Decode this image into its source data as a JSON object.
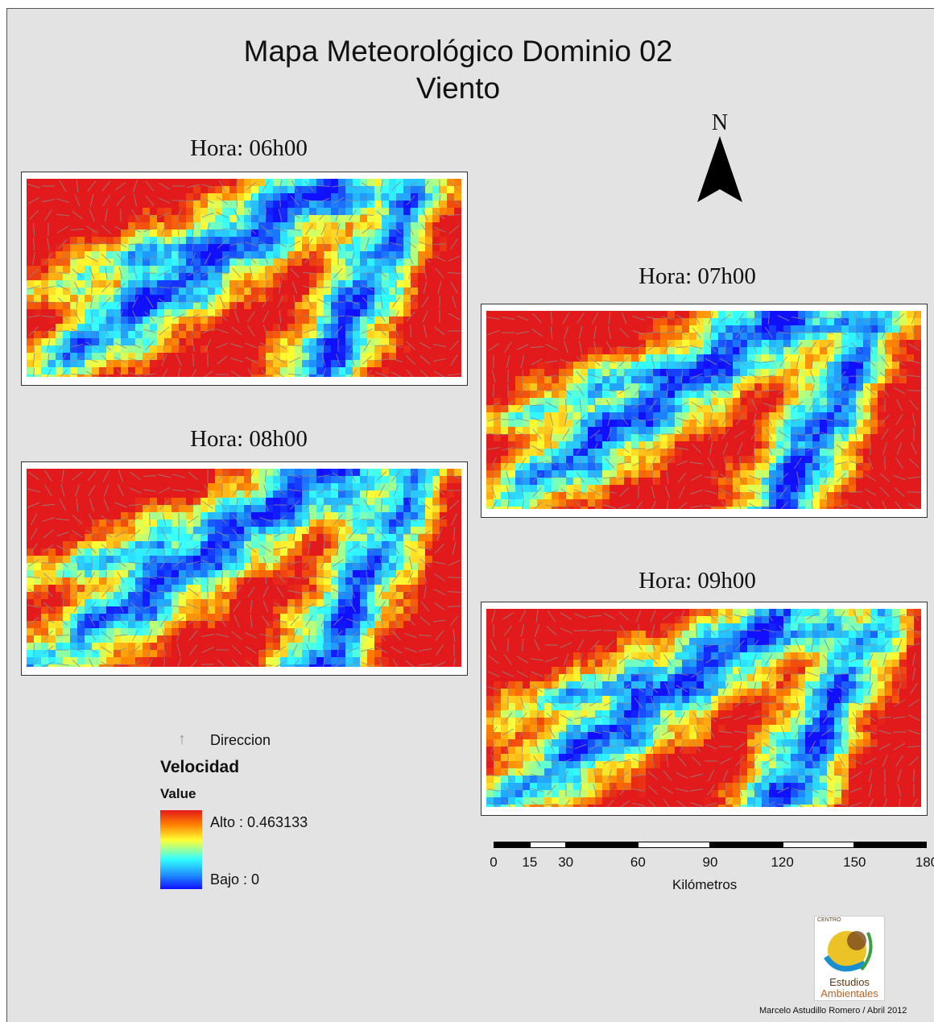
{
  "title": {
    "line1": "Mapa Meteorológico Dominio 02",
    "line2": "Viento"
  },
  "panels": [
    {
      "id": "p1",
      "label": "Hora: 06h00",
      "seed": 11
    },
    {
      "id": "p2",
      "label": "Hora: 07h00",
      "seed": 23
    },
    {
      "id": "p3",
      "label": "Hora: 08h00",
      "seed": 37
    },
    {
      "id": "p4",
      "label": "Hora: 09h00",
      "seed": 51
    }
  ],
  "north_arrow": {
    "label": "N"
  },
  "legend": {
    "direction_label": "Direccion",
    "velocity_label": "Velocidad",
    "value_label": "Value",
    "high_label": "Alto : 0.463133",
    "low_label": "Bajo : 0",
    "color_ramp": [
      "#e31a1c",
      "#ff7f00",
      "#ffff33",
      "#33ffff",
      "#1e90ff",
      "#1010ff"
    ],
    "arrow_color": "#8a8a8a"
  },
  "scale_bar": {
    "ticks": [
      "0",
      "15",
      "30",
      "60",
      "90",
      "120",
      "150",
      "180"
    ],
    "tick_values": [
      0,
      15,
      30,
      60,
      90,
      120,
      150,
      180
    ],
    "unit": "Kilómetros"
  },
  "logo": {
    "top_text": "CENTRO",
    "line1": "Estudios",
    "line2": "Ambientales"
  },
  "credit": "Marcelo Astudillo Romero / Abril 2012"
}
